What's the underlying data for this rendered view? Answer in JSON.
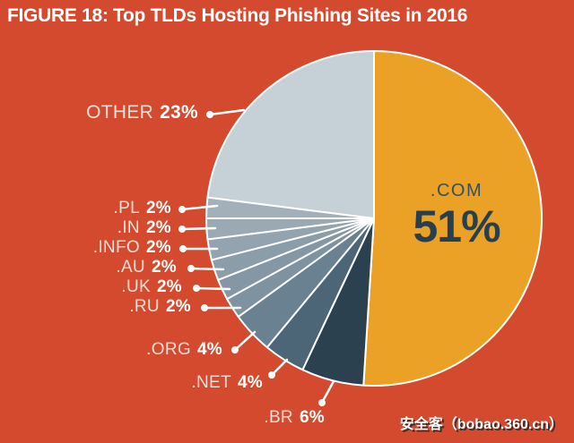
{
  "title": "FIGURE 18: Top TLDs Hosting Phishing Sites in 2016",
  "watermark": "安全客（bobao.360.cn）",
  "theme": {
    "background": "#D34A2F",
    "title_color": "#FFFFFF",
    "label_name_color": "#F1DED6",
    "label_pct_color": "#FFFFFF",
    "leader_color": "#FFFFFF",
    "slice_border_color": "#FFFFFF",
    "com_name_color": "#36505F",
    "com_pct_color": "#26404F"
  },
  "chart_data": {
    "type": "pie",
    "title": "FIGURE 18: Top TLDs Hosting Phishing Sites in 2016",
    "start_angle_deg": 0,
    "direction": "clockwise",
    "legend_position": "callout-labels",
    "slices": [
      {
        "label": ".COM",
        "value": 51,
        "pct": "51%",
        "color": "#EBA125"
      },
      {
        "label": ".BR",
        "value": 6,
        "pct": "6%",
        "color": "#2B4150"
      },
      {
        "label": ".NET",
        "value": 4,
        "pct": "4%",
        "color": "#4C6678"
      },
      {
        "label": ".ORG",
        "value": 4,
        "pct": "4%",
        "color": "#6A8191"
      },
      {
        "label": ".RU",
        "value": 2,
        "pct": "2%",
        "color": "#7E92A0"
      },
      {
        "label": ".UK",
        "value": 2,
        "pct": "2%",
        "color": "#8597A5"
      },
      {
        "label": ".AU",
        "value": 2,
        "pct": "2%",
        "color": "#8C9DAA"
      },
      {
        "label": ".INFO",
        "value": 2,
        "pct": "2%",
        "color": "#93A3AF"
      },
      {
        "label": ".IN",
        "value": 2,
        "pct": "2%",
        "color": "#9AA9B4"
      },
      {
        "label": ".PL",
        "value": 2,
        "pct": "2%",
        "color": "#A3B0BA"
      },
      {
        "label": "OTHER",
        "value": 23,
        "pct": "23%",
        "color": "#C6D0D7"
      }
    ]
  }
}
